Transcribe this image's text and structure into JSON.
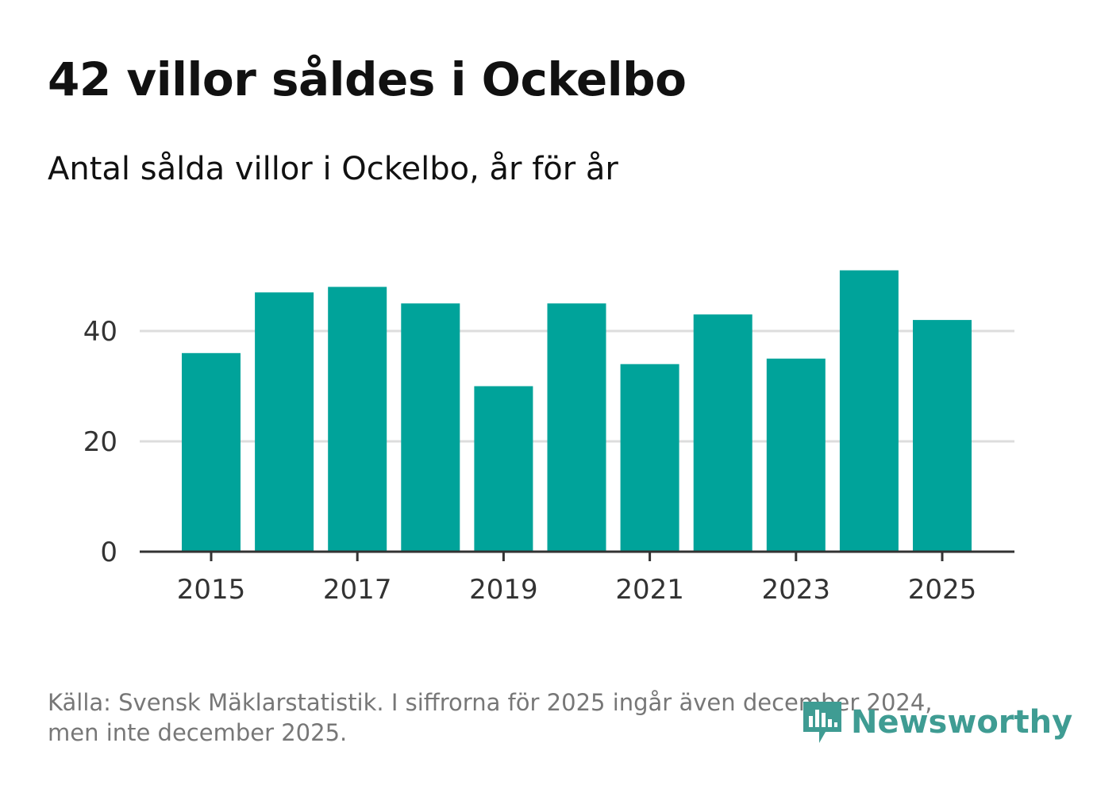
{
  "title": "42 villor såldes i Ockelbo",
  "subtitle": "Antal sålda villor i Ockelbo, år för år",
  "footer": {
    "line1": "Källa: Svensk Mäklarstatistik. I siffrorna för 2025 ingår även december 2024,",
    "line2": "men inte december 2025."
  },
  "logo": {
    "text": "Newsworthy",
    "icon": "newsworthy-logo-icon"
  },
  "colors": {
    "bar": "#00a39a",
    "grid": "#dddddd",
    "axis": "#333333",
    "logo": "#3f9c93"
  },
  "chart_data": {
    "type": "bar",
    "title": "Antal sålda villor i Ockelbo, år för år",
    "xlabel": "",
    "ylabel": "",
    "categories": [
      "2015",
      "2016",
      "2017",
      "2018",
      "2019",
      "2020",
      "2021",
      "2022",
      "2023",
      "2024",
      "2025"
    ],
    "values": [
      36,
      47,
      48,
      45,
      30,
      45,
      34,
      43,
      35,
      51,
      42
    ],
    "x_tick_labels": [
      "2015",
      "2017",
      "2019",
      "2021",
      "2023",
      "2025"
    ],
    "y_ticks": [
      0,
      20,
      40
    ],
    "ylim": [
      0,
      56
    ],
    "grid": true
  }
}
